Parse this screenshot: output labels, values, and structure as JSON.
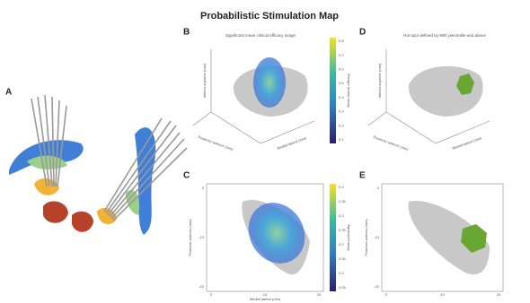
{
  "title": "Probabilistic Stimulation Map",
  "panels": [
    {
      "label": "A"
    },
    {
      "label": "B",
      "subtitle": "Significant mean clinical efficacy image",
      "x_label": "Medial-lateral (mm)",
      "y_label": "Posterior-anterior (mm)",
      "z_label": "Inferior-superior (mm)",
      "colorbar_label": "Mean clinical efficacy",
      "colorbar_ticks": [
        "0.8",
        "0.7",
        "0.6",
        "0.5",
        "0.4",
        "0.3",
        "0.2",
        "0.1"
      ]
    },
    {
      "label": "C",
      "x_label": "Medial-lateral (mm)",
      "y_label": "Posterior-anterior (mm)",
      "colorbar_label": "Mean probability",
      "colorbar_ticks": [
        "0.4",
        "0.35",
        "0.3",
        "0.25",
        "0.2",
        "0.15",
        "0.1",
        "0.05"
      ],
      "x_ticks": [
        "0",
        "10",
        "20"
      ],
      "y_ticks": [
        "0",
        "-10",
        "-20"
      ]
    },
    {
      "label": "D",
      "subtitle": "Hot spot defined by 90th percentile and above",
      "x_label": "Medial-lateral (mm)",
      "y_label": "Posterior-anterior (mm)",
      "z_label": "Inferior-superior (mm)"
    },
    {
      "label": "E",
      "y_label": "Posterior-anterior (mm)",
      "x_ticks": [
        "0",
        "10",
        "20"
      ],
      "y_ticks": [
        "0",
        "-10",
        "-20"
      ]
    }
  ]
}
